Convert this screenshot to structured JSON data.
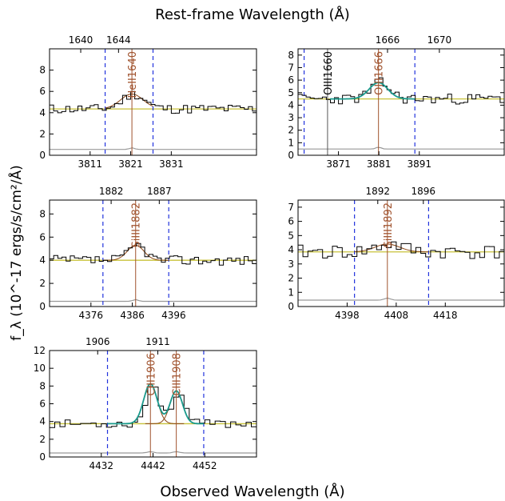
{
  "figure": {
    "top_label": "Rest-frame Wavelength (Å)",
    "bottom_label": "Observed Wavelength (Å)",
    "left_label": "f_λ (10^-17 ergs/s/cm²/Å)"
  },
  "colors": {
    "spectrum": "#000000",
    "continuum": "#c8c23a",
    "fit": "#1a9a8c",
    "component": "#8b4513",
    "line_marker": "#a0522d",
    "window": "#2233dd",
    "error": "#999999",
    "other_line": "#555555"
  },
  "chart_data": [
    {
      "type": "line",
      "xlabel": "",
      "ylabel": "",
      "xlim": [
        3801,
        3852
      ],
      "ylim": [
        0,
        10
      ],
      "x_ticks": [
        3811,
        3821,
        3831
      ],
      "y_ticks": [
        0,
        2,
        4,
        6,
        8
      ],
      "rest_xlim": [
        1636.7,
        1658.6
      ],
      "rest_ticks": [
        1640,
        1644
      ],
      "continuum": 4.35,
      "window": [
        3814.7,
        3826.5
      ],
      "lines": [
        {
          "label": "HeII1640",
          "obs": 3821.3,
          "kind": "fit"
        }
      ],
      "gaussians": [
        {
          "center": 3821.3,
          "amp": 1.4,
          "sigma": 2.8
        }
      ],
      "show_fit": false,
      "error_level": 0.55,
      "seed": 11,
      "noise": 0.45
    },
    {
      "type": "line",
      "xlabel": "",
      "ylabel": "",
      "xlim": [
        3861,
        3912
      ],
      "ylim": [
        0,
        8.5
      ],
      "x_ticks": [
        3871,
        3881,
        3891
      ],
      "y_ticks": [
        0,
        1,
        2,
        3,
        4,
        5,
        6,
        7,
        8
      ],
      "rest_xlim": [
        1659.1,
        1675.0
      ],
      "rest_ticks": [
        1666,
        1670
      ],
      "continuum": 4.5,
      "window": [
        3862.5,
        3889.9
      ],
      "lines": [
        {
          "label": "OIII1660",
          "obs": 3868.3,
          "kind": "other"
        },
        {
          "label": "OIII1666",
          "obs": 3880.9,
          "kind": "fit"
        }
      ],
      "gaussians": [
        {
          "center": 3880.9,
          "amp": 1.3,
          "sigma": 2.3
        }
      ],
      "show_fit": true,
      "error_level": 0.5,
      "seed": 23,
      "noise": 0.42
    },
    {
      "type": "line",
      "xlabel": "",
      "ylabel": "",
      "xlim": [
        4366,
        4416
      ],
      "ylim": [
        0,
        9.2
      ],
      "x_ticks": [
        4376,
        4386,
        4396
      ],
      "y_ticks": [
        0,
        2,
        4,
        6,
        8
      ],
      "rest_xlim": [
        1875.6,
        1897.1
      ],
      "rest_ticks": [
        1882,
        1887
      ],
      "continuum": 4.0,
      "window": [
        4378.9,
        4394.8
      ],
      "lines": [
        {
          "label": "SiIII1882",
          "obs": 4386.8,
          "kind": "fit"
        }
      ],
      "gaussians": [
        {
          "center": 4386.8,
          "amp": 1.3,
          "sigma": 2.0
        }
      ],
      "show_fit": false,
      "error_level": 0.45,
      "seed": 37,
      "noise": 0.42
    },
    {
      "type": "line",
      "xlabel": "",
      "ylabel": "",
      "xlim": [
        4388,
        4430
      ],
      "ylim": [
        0,
        7.5
      ],
      "x_ticks": [
        4398,
        4408,
        4418
      ],
      "y_ticks": [
        0,
        1,
        2,
        3,
        4,
        5,
        6,
        7
      ],
      "rest_xlim": [
        1885.0,
        1903.1
      ],
      "rest_ticks": [
        1892,
        1896
      ],
      "continuum": 3.85,
      "window": [
        4399.5,
        4414.6
      ],
      "lines": [
        {
          "label": "SiIII1892",
          "obs": 4406.2,
          "kind": "fit"
        }
      ],
      "gaussians": [
        {
          "center": 4406.2,
          "amp": 0.55,
          "sigma": 2.5
        }
      ],
      "show_fit": false,
      "error_level": 0.45,
      "seed": 41,
      "noise": 0.5
    },
    {
      "type": "line",
      "xlabel": "",
      "ylabel": "",
      "xlim": [
        4422,
        4462
      ],
      "ylim": [
        0,
        12
      ],
      "x_ticks": [
        4432,
        4442,
        4452
      ],
      "y_ticks": [
        0,
        2,
        4,
        6,
        8,
        10,
        12
      ],
      "rest_xlim": [
        1902.0,
        1919.2
      ],
      "rest_ticks": [
        1906,
        1911
      ],
      "continuum": 3.75,
      "window": [
        4433.2,
        4451.8
      ],
      "lines": [
        {
          "label": "CIII1906",
          "obs": 4441.5,
          "kind": "fit"
        },
        {
          "label": "CIII1908",
          "obs": 4446.5,
          "kind": "fit"
        }
      ],
      "gaussians": [
        {
          "center": 4441.5,
          "amp": 4.5,
          "sigma": 1.3
        },
        {
          "center": 4446.5,
          "amp": 3.7,
          "sigma": 1.2
        }
      ],
      "show_fit": true,
      "error_level": 0.45,
      "seed": 53,
      "noise": 0.45
    }
  ]
}
